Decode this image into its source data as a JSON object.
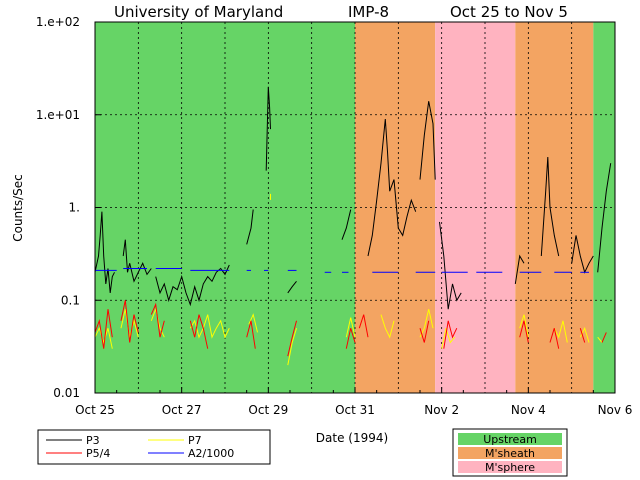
{
  "chart_data": {
    "type": "line",
    "title": {
      "institution": "University of Maryland",
      "spacecraft": "IMP-8",
      "period": "Oct 25 to Nov 5"
    },
    "xlabel": "Date (1994)",
    "ylabel": "Counts/Sec",
    "yscale": "log",
    "ylim": [
      0.01,
      100
    ],
    "xlim": [
      0,
      12
    ],
    "x_ticks": [
      {
        "day": 0,
        "label": "Oct 25"
      },
      {
        "day": 2,
        "label": "Oct 27"
      },
      {
        "day": 4,
        "label": "Oct 29"
      },
      {
        "day": 6,
        "label": "Oct 31"
      },
      {
        "day": 8,
        "label": "Nov 2"
      },
      {
        "day": 10,
        "label": "Nov 4"
      },
      {
        "day": 12,
        "label": "Nov 6"
      }
    ],
    "y_ticks": [
      {
        "value": 100,
        "label": "1.e+02"
      },
      {
        "value": 10,
        "label": "1.e+01"
      },
      {
        "value": 1,
        "label": "1."
      },
      {
        "value": 0.1,
        "label": "0.1"
      },
      {
        "value": 0.01,
        "label": "0.01"
      }
    ],
    "regions": [
      {
        "from": 0,
        "to": 6.0,
        "kind": "Upstream"
      },
      {
        "from": 6.0,
        "to": 7.85,
        "kind": "M'sheath"
      },
      {
        "from": 7.85,
        "to": 9.7,
        "kind": "M'sphere"
      },
      {
        "from": 9.7,
        "to": 11.5,
        "kind": "M'sheath"
      },
      {
        "from": 11.5,
        "to": 12,
        "kind": "Upstream"
      }
    ],
    "region_legend": [
      {
        "name": "Upstream",
        "color": "#66d466"
      },
      {
        "name": "M'sheath",
        "color": "#f3a462"
      },
      {
        "name": "M'sphere",
        "color": "#ffb3c0"
      }
    ],
    "series_legend": [
      {
        "name": "P3",
        "color": "#000000"
      },
      {
        "name": "P7",
        "color": "#ffff00"
      },
      {
        "name": "P5/4",
        "color": "#ff0000"
      },
      {
        "name": "A2/1000",
        "color": "#0000ff"
      }
    ],
    "series": [
      {
        "name": "P3",
        "color": "#000000",
        "segments": [
          [
            [
              0,
              0.2
            ],
            [
              0.08,
              0.3
            ],
            [
              0.12,
              0.5
            ],
            [
              0.16,
              0.9
            ],
            [
              0.2,
              0.3
            ],
            [
              0.25,
              0.15
            ],
            [
              0.3,
              0.22
            ],
            [
              0.35,
              0.12
            ],
            [
              0.4,
              0.18
            ],
            [
              0.45,
              0.2
            ]
          ],
          [
            [
              0.65,
              0.3
            ],
            [
              0.7,
              0.45
            ],
            [
              0.75,
              0.2
            ],
            [
              0.8,
              0.25
            ],
            [
              0.9,
              0.16
            ],
            [
              1.0,
              0.2
            ],
            [
              1.1,
              0.25
            ],
            [
              1.2,
              0.19
            ],
            [
              1.3,
              0.22
            ]
          ],
          [
            [
              1.4,
              0.18
            ],
            [
              1.5,
              0.12
            ],
            [
              1.6,
              0.15
            ],
            [
              1.7,
              0.1
            ],
            [
              1.8,
              0.14
            ],
            [
              1.9,
              0.13
            ],
            [
              2.0,
              0.18
            ],
            [
              2.1,
              0.12
            ],
            [
              2.2,
              0.09
            ],
            [
              2.3,
              0.14
            ],
            [
              2.4,
              0.1
            ],
            [
              2.5,
              0.15
            ],
            [
              2.6,
              0.18
            ],
            [
              2.7,
              0.16
            ],
            [
              2.8,
              0.2
            ],
            [
              2.9,
              0.22
            ],
            [
              3.0,
              0.19
            ],
            [
              3.1,
              0.24
            ]
          ],
          [
            [
              3.5,
              0.4
            ],
            [
              3.6,
              0.6
            ],
            [
              3.65,
              0.95
            ]
          ],
          [
            [
              3.95,
              2.5
            ],
            [
              4.0,
              20
            ],
            [
              4.03,
              12
            ],
            [
              4.05,
              7
            ]
          ],
          [
            [
              4.45,
              0.12
            ],
            [
              4.55,
              0.14
            ],
            [
              4.65,
              0.16
            ]
          ],
          [
            [
              5.7,
              0.45
            ],
            [
              5.8,
              0.6
            ],
            [
              5.9,
              0.95
            ]
          ],
          [
            [
              6.3,
              0.3
            ],
            [
              6.4,
              0.5
            ],
            [
              6.5,
              1.2
            ],
            [
              6.6,
              3
            ],
            [
              6.7,
              9
            ],
            [
              6.75,
              4
            ],
            [
              6.8,
              1.5
            ],
            [
              6.9,
              2
            ],
            [
              7.0,
              0.6
            ],
            [
              7.1,
              0.5
            ],
            [
              7.2,
              0.8
            ],
            [
              7.3,
              1.2
            ],
            [
              7.4,
              0.9
            ]
          ],
          [
            [
              7.5,
              2
            ],
            [
              7.6,
              6
            ],
            [
              7.7,
              14
            ],
            [
              7.8,
              8
            ],
            [
              7.85,
              2
            ]
          ],
          [
            [
              7.95,
              0.7
            ],
            [
              8.05,
              0.3
            ],
            [
              8.15,
              0.08
            ],
            [
              8.25,
              0.15
            ],
            [
              8.35,
              0.1
            ],
            [
              8.45,
              0.12
            ]
          ],
          [
            [
              9.7,
              0.15
            ],
            [
              9.8,
              0.3
            ],
            [
              9.9,
              0.25
            ]
          ],
          [
            [
              10.3,
              0.3
            ],
            [
              10.4,
              1.5
            ],
            [
              10.45,
              3.5
            ],
            [
              10.5,
              1
            ],
            [
              10.6,
              0.5
            ],
            [
              10.7,
              0.3
            ]
          ],
          [
            [
              11.0,
              0.25
            ],
            [
              11.1,
              0.5
            ],
            [
              11.2,
              0.3
            ],
            [
              11.3,
              0.2
            ],
            [
              11.4,
              0.25
            ],
            [
              11.5,
              0.3
            ]
          ],
          [
            [
              11.6,
              0.2
            ],
            [
              11.7,
              0.6
            ],
            [
              11.8,
              1.5
            ],
            [
              11.9,
              3
            ]
          ]
        ]
      },
      {
        "name": "P7",
        "color": "#ffff00",
        "segments": [
          [
            [
              0,
              0.04
            ],
            [
              0.1,
              0.05
            ],
            [
              0.2,
              0.035
            ],
            [
              0.3,
              0.05
            ],
            [
              0.4,
              0.03
            ]
          ],
          [
            [
              0.6,
              0.05
            ],
            [
              0.7,
              0.08
            ],
            [
              0.8,
              0.04
            ],
            [
              0.9,
              0.06
            ],
            [
              1.0,
              0.04
            ]
          ],
          [
            [
              1.3,
              0.06
            ],
            [
              1.4,
              0.08
            ],
            [
              1.5,
              0.05
            ],
            [
              1.6,
              0.04
            ]
          ],
          [
            [
              2.2,
              0.05
            ],
            [
              2.3,
              0.06
            ],
            [
              2.4,
              0.04
            ],
            [
              2.5,
              0.05
            ],
            [
              2.6,
              0.07
            ],
            [
              2.7,
              0.04
            ],
            [
              2.8,
              0.05
            ],
            [
              2.9,
              0.06
            ],
            [
              3.0,
              0.04
            ],
            [
              3.1,
              0.05
            ]
          ],
          [
            [
              3.55,
              0.055
            ],
            [
              3.65,
              0.07
            ],
            [
              3.75,
              0.045
            ]
          ],
          [
            [
              4.05,
              1.3
            ]
          ],
          [
            [
              4.45,
              0.02
            ],
            [
              4.55,
              0.035
            ],
            [
              4.65,
              0.05
            ]
          ],
          [
            [
              5.8,
              0.04
            ],
            [
              5.9,
              0.065
            ],
            [
              6.0,
              0.04
            ]
          ],
          [
            [
              6.6,
              0.07
            ],
            [
              6.7,
              0.05
            ],
            [
              6.8,
              0.04
            ],
            [
              6.9,
              0.06
            ]
          ],
          [
            [
              7.5,
              0.04
            ],
            [
              7.6,
              0.05
            ],
            [
              7.7,
              0.08
            ],
            [
              7.8,
              0.05
            ]
          ],
          [
            [
              8.0,
              0.03
            ],
            [
              8.1,
              0.05
            ],
            [
              8.2,
              0.035
            ],
            [
              8.3,
              0.04
            ]
          ],
          [
            [
              9.8,
              0.05
            ],
            [
              9.9,
              0.07
            ],
            [
              10.0,
              0.04
            ]
          ],
          [
            [
              10.6,
              0.05
            ],
            [
              10.7,
              0.04
            ],
            [
              10.8,
              0.06
            ],
            [
              10.9,
              0.035
            ]
          ],
          [
            [
              11.2,
              0.04
            ],
            [
              11.3,
              0.05
            ],
            [
              11.4,
              0.035
            ]
          ],
          [
            [
              11.6,
              0.04
            ],
            [
              11.7,
              0.035
            ]
          ]
        ]
      },
      {
        "name": "P5/4",
        "color": "#ff0000",
        "segments": [
          [
            [
              0,
              0.045
            ],
            [
              0.1,
              0.06
            ],
            [
              0.2,
              0.03
            ],
            [
              0.3,
              0.08
            ],
            [
              0.4,
              0.04
            ]
          ],
          [
            [
              0.6,
              0.06
            ],
            [
              0.7,
              0.1
            ],
            [
              0.8,
              0.035
            ],
            [
              0.9,
              0.07
            ],
            [
              1.0,
              0.045
            ]
          ],
          [
            [
              1.3,
              0.07
            ],
            [
              1.4,
              0.09
            ],
            [
              1.5,
              0.04
            ],
            [
              1.6,
              0.06
            ]
          ],
          [
            [
              2.2,
              0.06
            ],
            [
              2.3,
              0.04
            ],
            [
              2.4,
              0.07
            ],
            [
              2.5,
              0.05
            ],
            [
              2.6,
              0.03
            ]
          ],
          [
            [
              3.5,
              0.04
            ],
            [
              3.6,
              0.06
            ],
            [
              3.7,
              0.03
            ]
          ],
          [
            [
              4.45,
              0.025
            ],
            [
              4.55,
              0.04
            ],
            [
              4.65,
              0.06
            ]
          ],
          [
            [
              5.8,
              0.03
            ],
            [
              5.9,
              0.05
            ],
            [
              6.0,
              0.035
            ]
          ],
          [
            [
              6.1,
              0.05
            ],
            [
              6.2,
              0.07
            ],
            [
              6.3,
              0.04
            ]
          ],
          [
            [
              7.5,
              0.05
            ],
            [
              7.6,
              0.035
            ],
            [
              7.7,
              0.06
            ]
          ],
          [
            [
              8.05,
              0.03
            ],
            [
              8.15,
              0.06
            ],
            [
              8.25,
              0.04
            ],
            [
              8.35,
              0.05
            ]
          ],
          [
            [
              9.8,
              0.04
            ],
            [
              9.9,
              0.06
            ],
            [
              10.0,
              0.035
            ]
          ],
          [
            [
              10.5,
              0.035
            ],
            [
              10.6,
              0.05
            ],
            [
              10.7,
              0.03
            ]
          ],
          [
            [
              11.2,
              0.05
            ],
            [
              11.3,
              0.035
            ]
          ],
          [
            [
              11.7,
              0.035
            ],
            [
              11.8,
              0.045
            ]
          ]
        ]
      },
      {
        "name": "A2/1000",
        "color": "#0000ff",
        "segments": [
          [
            [
              0,
              0.21
            ],
            [
              0.5,
              0.21
            ]
          ],
          [
            [
              0.65,
              0.22
            ],
            [
              1.2,
              0.22
            ]
          ],
          [
            [
              1.4,
              0.22
            ],
            [
              2.0,
              0.22
            ]
          ],
          [
            [
              2.2,
              0.21
            ],
            [
              3.1,
              0.21
            ]
          ],
          [
            [
              3.5,
              0.21
            ],
            [
              3.6,
              0.21
            ]
          ],
          [
            [
              3.9,
              0.21
            ],
            [
              4.0,
              0.21
            ]
          ],
          [
            [
              4.45,
              0.21
            ],
            [
              4.65,
              0.21
            ]
          ],
          [
            [
              5.3,
              0.2
            ],
            [
              5.45,
              0.2
            ]
          ],
          [
            [
              5.7,
              0.2
            ],
            [
              5.85,
              0.2
            ]
          ],
          [
            [
              6.4,
              0.2
            ],
            [
              7.0,
              0.2
            ]
          ],
          [
            [
              7.4,
              0.2
            ],
            [
              7.85,
              0.2
            ]
          ],
          [
            [
              8.0,
              0.2
            ],
            [
              8.6,
              0.2
            ]
          ],
          [
            [
              8.8,
              0.2
            ],
            [
              9.4,
              0.2
            ]
          ],
          [
            [
              9.8,
              0.2
            ],
            [
              10.3,
              0.2
            ]
          ],
          [
            [
              10.6,
              0.2
            ],
            [
              11.0,
              0.2
            ]
          ],
          [
            [
              11.2,
              0.2
            ],
            [
              11.4,
              0.2
            ]
          ]
        ]
      }
    ]
  }
}
